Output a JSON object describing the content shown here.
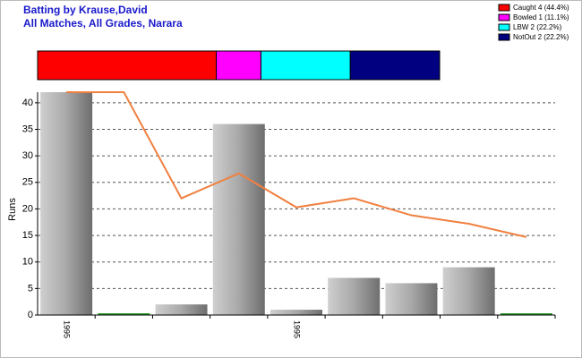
{
  "chart_data": [
    {
      "type": "proportion-bar",
      "series": [
        {
          "name": "Caught 4 (44.4%)",
          "color": "#ff0000",
          "values": [
            44.4
          ]
        },
        {
          "name": "Bowled 1 (11.1%)",
          "color": "#ff00ff",
          "values": [
            11.1
          ]
        },
        {
          "name": "LBW 2 (22.2%)",
          "color": "#00ffff",
          "values": [
            22.2
          ]
        },
        {
          "name": "NotOut 2 (22.2%)",
          "color": "#000080",
          "values": [
            22.2
          ]
        }
      ]
    },
    {
      "type": "bar",
      "title": "Batting by Krause,David",
      "subtitle": "All Matches, All Grades, Narara",
      "y_label": "Runs",
      "categories": [
        "1995",
        null,
        null,
        null,
        "1995",
        null,
        null,
        null,
        null
      ],
      "values": [
        42,
        0,
        2,
        36,
        1,
        7,
        6,
        9,
        0
      ],
      "color": "#a0a0a0",
      "line": {
        "color": "#f08040",
        "values": [
          42,
          42,
          22,
          26.7,
          20.3,
          22,
          18.8,
          17.2,
          14.7
        ]
      },
      "ylim": [
        0,
        42
      ],
      "yticks": [
        0,
        5,
        10,
        15,
        20,
        25,
        30,
        35,
        40
      ],
      "grid": true
    }
  ]
}
